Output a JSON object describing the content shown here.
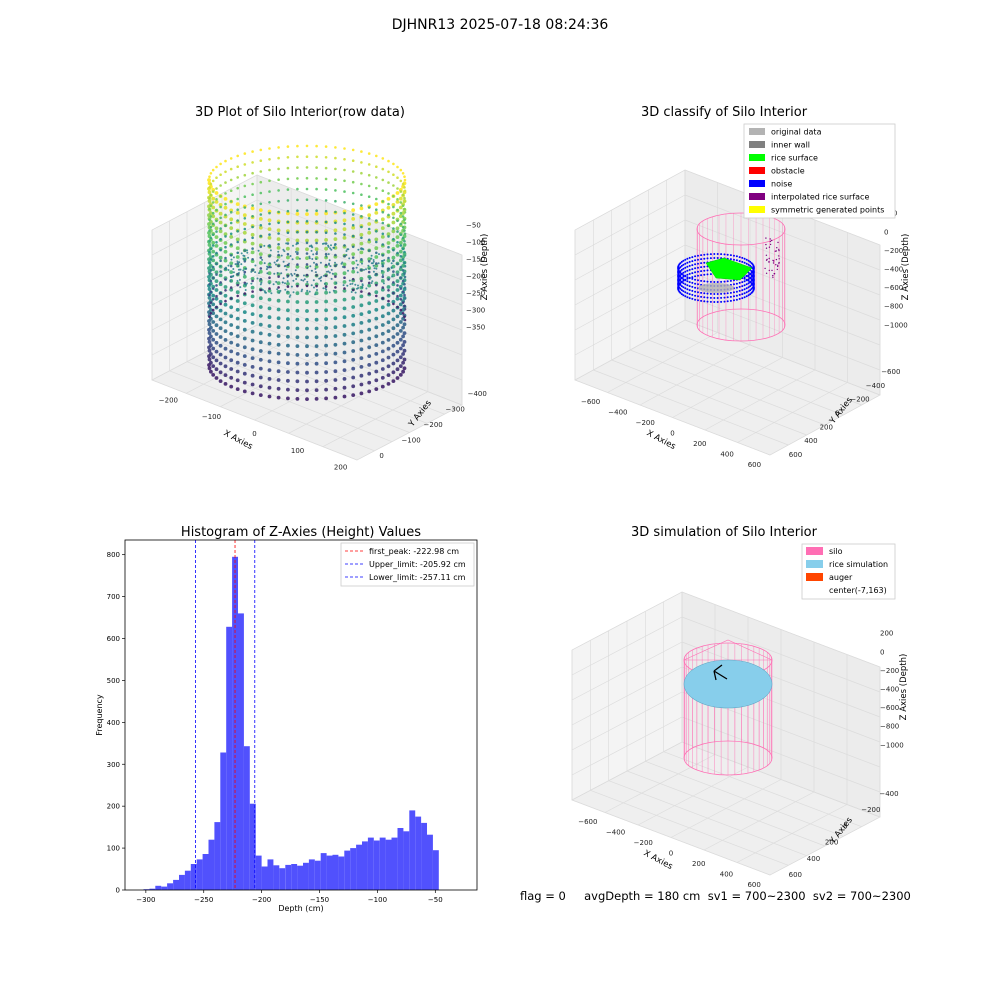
{
  "figure": {
    "suptitle": "DJHNR13 2025-07-18 08:24:36",
    "status_text": "flag = 0     avgDepth = 180 cm  sv1 = 700~2300  sv2 = 700~2300"
  },
  "colors": {
    "pane": "#f2f2f2",
    "grid": "#dcdcdc",
    "hist_bar": "#4b4bfd",
    "peak_line": "#ff0000",
    "limit_line": "#0000ff",
    "silo": "#ff6eb4",
    "rice": "#87ceeb",
    "auger": "#ff4500",
    "original": "#b3b3b3",
    "inner_wall": "#808080",
    "rice_surface": "#00ff00",
    "obstacle": "#ff0000",
    "noise": "#0000ff",
    "interp": "#800080",
    "symmetric": "#ffff00"
  },
  "chart_data": [
    {
      "type": "scatter",
      "title": "3D Plot of Silo Interior(row data)",
      "xlabel": "X Axies",
      "ylabel": "Y Axies",
      "zlabel": "Z Axies (Depth)",
      "x_ticks": [
        "−200",
        "−100",
        "0",
        "100",
        "200"
      ],
      "y_ticks": [
        "0",
        "−100",
        "−200",
        "−300",
        "−400"
      ],
      "z_ticks": [
        "−50",
        "−100",
        "−150",
        "−200",
        "−250",
        "−300",
        "−350"
      ],
      "xlim": [
        -230,
        230
      ],
      "ylim": [
        -420,
        40
      ],
      "zlim": [
        -380,
        -20
      ],
      "colormap": "viridis"
    },
    {
      "type": "scatter",
      "title": "3D classify of Silo Interior",
      "xlabel": "X Axies",
      "ylabel": "Y Axies",
      "zlabel": "Z Axies (Depth)",
      "x_ticks": [
        "−600",
        "−400",
        "−200",
        "0",
        "200",
        "400",
        "600"
      ],
      "y_ticks": [
        "600",
        "400",
        "200",
        "0",
        "−200",
        "−400",
        "−600"
      ],
      "z_ticks": [
        "200",
        "0",
        "−200",
        "−400",
        "−600",
        "−800",
        "−1000"
      ],
      "legend": [
        "original data",
        "inner wall",
        "rice surface",
        "obstacle",
        "noise",
        "interpolated rice surface",
        "symmetric generated points"
      ]
    },
    {
      "type": "bar",
      "title": "Histogram of Z-Axies (Height) Values",
      "xlabel": "Depth (cm)",
      "ylabel": "Frequency",
      "xlim": [
        -318,
        -14
      ],
      "ylim": [
        0,
        835
      ],
      "x_ticks": [
        -300,
        -250,
        -200,
        -150,
        -100,
        -50
      ],
      "y_ticks": [
        0,
        100,
        200,
        300,
        400,
        500,
        600,
        700,
        800
      ],
      "bins_start": -302,
      "bin_width": 5.1,
      "values": [
        2,
        3,
        10,
        8,
        16,
        24,
        36,
        46,
        62,
        73,
        86,
        120,
        162,
        328,
        628,
        795,
        660,
        343,
        206,
        82,
        56,
        73,
        59,
        52,
        60,
        62,
        58,
        65,
        73,
        70,
        88,
        82,
        84,
        80,
        94,
        100,
        108,
        116,
        125,
        118,
        125,
        120,
        125,
        148,
        140,
        190,
        175,
        160,
        132,
        95
      ],
      "vlines": [
        {
          "x": -222.98,
          "color": "#ff0000",
          "label": "first_peak: -222.98 cm"
        },
        {
          "x": -205.92,
          "color": "#0000ff",
          "label": "Upper_limit: -205.92 cm"
        },
        {
          "x": -257.11,
          "color": "#0000ff",
          "label": "Lower_limit: -257.11 cm"
        }
      ],
      "legend_position": "top-right"
    },
    {
      "type": "scatter",
      "title": "3D simulation of Silo Interior",
      "xlabel": "X Axies",
      "ylabel": "Y Axies",
      "zlabel": "Z Axies (Depth)",
      "x_ticks": [
        "−600",
        "−400",
        "−200",
        "0",
        "200",
        "400",
        "600"
      ],
      "y_ticks": [
        "600",
        "400",
        "200",
        "0",
        "−200",
        "−400"
      ],
      "z_ticks": [
        "200",
        "0",
        "−200",
        "−400",
        "−600",
        "−800",
        "−1000"
      ],
      "legend": [
        "silo",
        "rice simulation",
        "auger",
        "center(-7,163)"
      ]
    }
  ]
}
